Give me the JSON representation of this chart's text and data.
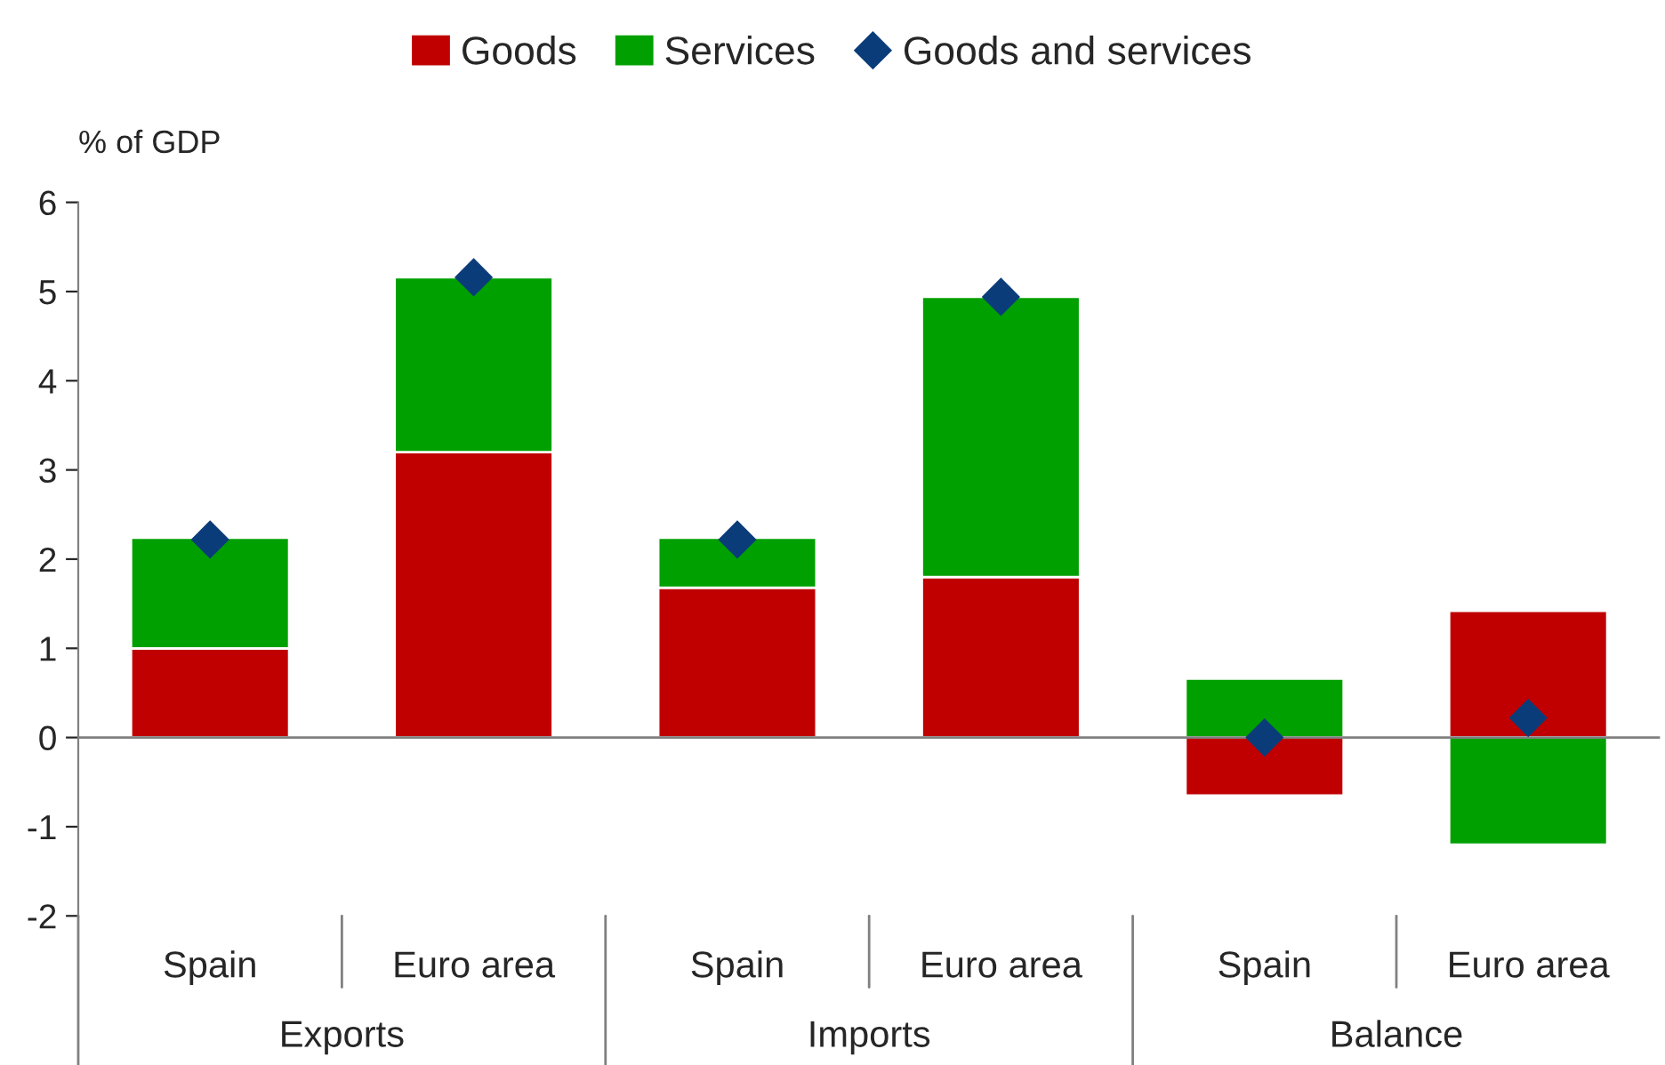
{
  "chart_data": {
    "type": "bar",
    "stacked": true,
    "ylabel": "% of GDP",
    "categories": [
      "Spain",
      "Euro area",
      "Spain",
      "Euro area",
      "Spain",
      "Euro area"
    ],
    "series": [
      {
        "name": "Goods",
        "color": "#c00000",
        "values": [
          1.0,
          3.2,
          1.68,
          1.8,
          -0.65,
          1.42
        ]
      },
      {
        "name": "Services",
        "color": "#00a000",
        "values": [
          1.24,
          1.96,
          0.56,
          3.14,
          0.66,
          -1.2
        ]
      },
      {
        "name": "Goods and services",
        "type": "scatter",
        "marker": "diamond",
        "color": "#0b3c7a",
        "values": [
          2.22,
          5.16,
          2.22,
          4.94,
          0.0,
          0.22
        ]
      }
    ],
    "ylim": [
      -2,
      6
    ],
    "yticks": [
      -2,
      -1,
      0,
      1,
      2,
      3,
      4,
      5,
      6
    ],
    "ref_lines": [
      {
        "axis": "y",
        "value": 0,
        "color": "#808080"
      }
    ],
    "annotations": [
      "Exports",
      "Imports",
      "Balance"
    ],
    "legend": "top",
    "grid": false
  }
}
